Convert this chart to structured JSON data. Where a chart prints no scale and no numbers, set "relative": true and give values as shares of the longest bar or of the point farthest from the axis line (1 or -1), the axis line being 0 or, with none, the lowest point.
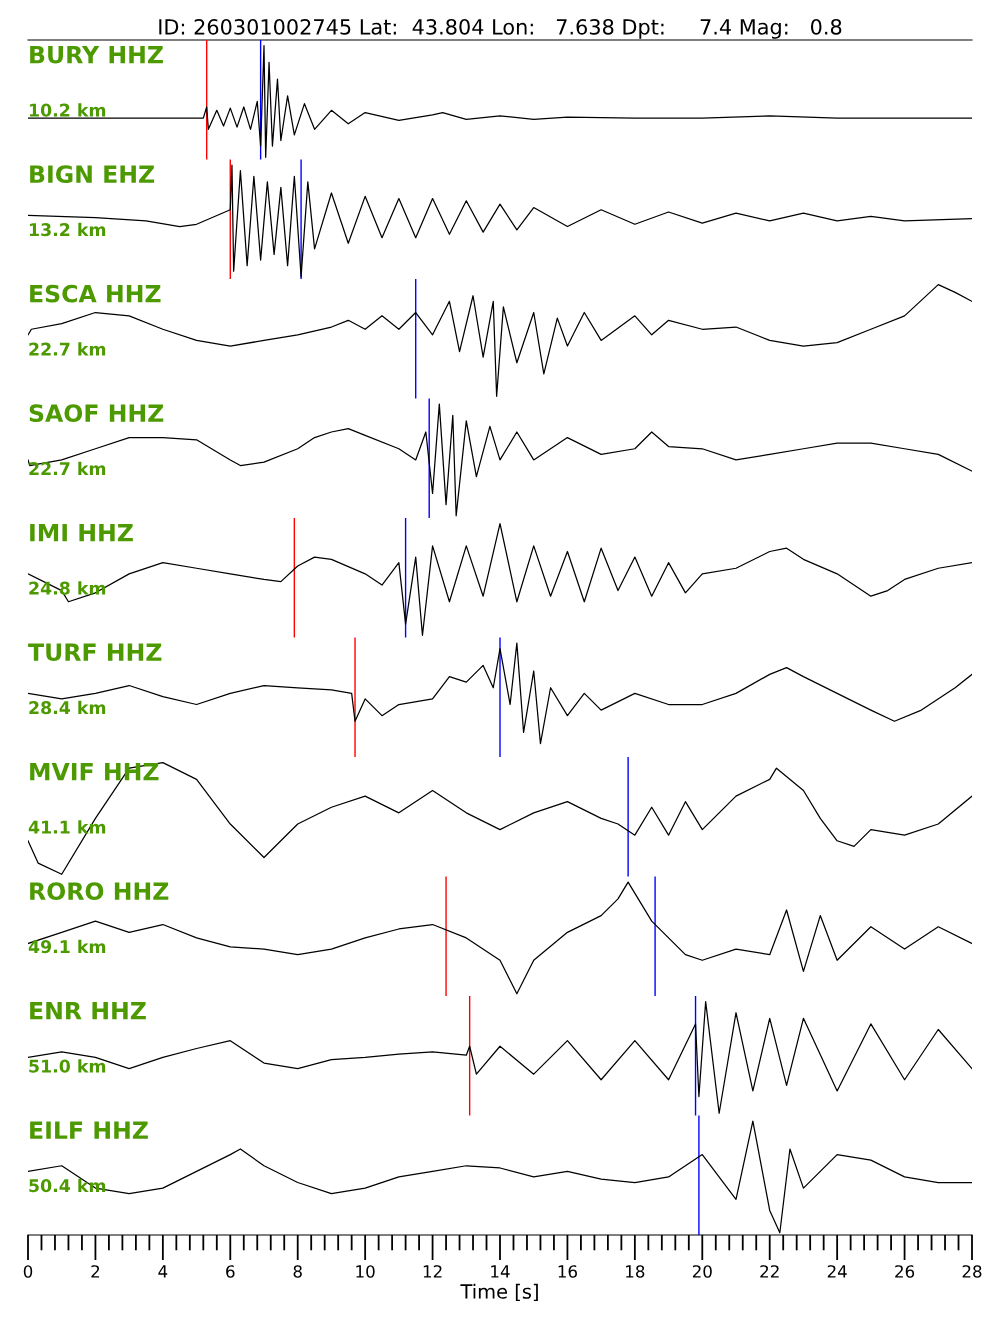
{
  "chart_data": [
    {
      "type": "line",
      "relative": true,
      "title": "ID: 260301002745 Lat:  43.804 Lon:   7.638 Dpt:     7.4 Mag:   0.8",
      "annotations": [
        "BURY HHZ",
        "10.2 km"
      ],
      "xlim": [
        0,
        28
      ],
      "tick_labels": false,
      "series": [
        {
          "color": "#000000",
          "x": [
            0,
            5.2,
            5.3,
            5.35,
            5.6,
            5.8,
            6.0,
            6.2,
            6.4,
            6.6,
            6.8,
            6.9,
            7.0,
            7.05,
            7.15,
            7.25,
            7.4,
            7.5,
            7.7,
            7.9,
            8.2,
            8.5,
            9,
            9.5,
            10,
            11,
            12,
            12.3,
            13,
            14,
            15,
            16,
            18,
            20,
            22,
            24,
            26,
            28
          ],
          "values": [
            0.35,
            0.35,
            0.45,
            0.25,
            0.42,
            0.28,
            0.44,
            0.27,
            0.45,
            0.25,
            0.5,
            0.1,
            1.0,
            0.0,
            0.85,
            0.1,
            0.7,
            0.15,
            0.55,
            0.2,
            0.48,
            0.25,
            0.42,
            0.3,
            0.4,
            0.33,
            0.38,
            0.4,
            0.34,
            0.37,
            0.34,
            0.36,
            0.35,
            0.35,
            0.37,
            0.35,
            0.35,
            0.35
          ]
        }
      ],
      "ref_lines": [
        {
          "axis": "x",
          "value": 5.3,
          "color": "#ff0000"
        },
        {
          "axis": "x",
          "value": 6.9,
          "color": "#0000ff"
        }
      ]
    },
    {
      "type": "line",
      "relative": true,
      "annotations": [
        "BIGN EHZ",
        "13.2 km"
      ],
      "xlim": [
        0,
        28
      ],
      "tick_labels": false,
      "series": [
        {
          "color": "#000000",
          "x": [
            0,
            2,
            3.5,
            4.5,
            5,
            6.0,
            6.05,
            6.1,
            6.3,
            6.5,
            6.7,
            6.9,
            7.1,
            7.3,
            7.5,
            7.7,
            7.9,
            8.1,
            8.3,
            8.5,
            9,
            9.5,
            10,
            10.5,
            11,
            11.5,
            12,
            12.5,
            13,
            13.5,
            14,
            14.5,
            15,
            16,
            17,
            18,
            19,
            20,
            21,
            22,
            23,
            24,
            25,
            26,
            28
          ],
          "values": [
            0.55,
            0.53,
            0.5,
            0.45,
            0.47,
            0.6,
            1.0,
            0.05,
            0.95,
            0.1,
            0.9,
            0.15,
            0.85,
            0.2,
            0.8,
            0.1,
            0.9,
            0.0,
            0.85,
            0.25,
            0.75,
            0.3,
            0.72,
            0.35,
            0.7,
            0.35,
            0.7,
            0.38,
            0.68,
            0.4,
            0.65,
            0.42,
            0.62,
            0.45,
            0.6,
            0.47,
            0.58,
            0.48,
            0.57,
            0.5,
            0.57,
            0.5,
            0.54,
            0.5,
            0.52
          ]
        }
      ],
      "ref_lines": [
        {
          "axis": "x",
          "value": 6.0,
          "color": "#ff0000"
        },
        {
          "axis": "x",
          "value": 8.1,
          "color": "#0000ff"
        }
      ]
    },
    {
      "type": "line",
      "relative": true,
      "annotations": [
        "ESCA HHZ",
        "22.7 km"
      ],
      "xlim": [
        0,
        28
      ],
      "tick_labels": false,
      "series": [
        {
          "color": "#000000",
          "x": [
            0,
            0.1,
            1,
            2,
            3,
            4,
            5,
            6,
            7,
            8,
            9,
            9.5,
            10,
            10.5,
            11,
            11.5,
            12,
            12.5,
            12.8,
            13.2,
            13.5,
            13.8,
            13.9,
            14.1,
            14.5,
            15,
            15.3,
            15.7,
            16,
            16.5,
            17,
            18,
            18.5,
            19,
            20,
            21,
            22,
            23,
            24,
            25,
            26,
            27,
            27.5,
            28
          ],
          "values": [
            0.55,
            0.6,
            0.65,
            0.75,
            0.72,
            0.6,
            0.5,
            0.45,
            0.5,
            0.55,
            0.62,
            0.68,
            0.6,
            0.72,
            0.6,
            0.75,
            0.55,
            0.85,
            0.4,
            0.9,
            0.35,
            0.85,
            0.0,
            0.8,
            0.3,
            0.75,
            0.2,
            0.7,
            0.45,
            0.75,
            0.5,
            0.72,
            0.55,
            0.68,
            0.6,
            0.62,
            0.5,
            0.45,
            0.48,
            0.6,
            0.72,
            1.0,
            0.93,
            0.85
          ]
        }
      ],
      "ref_lines": [
        {
          "axis": "x",
          "value": 11.5,
          "color": "#0000ff"
        }
      ]
    },
    {
      "type": "line",
      "relative": true,
      "annotations": [
        "SAOF HHZ",
        "22.7 km"
      ],
      "xlim": [
        0,
        28
      ],
      "tick_labels": false,
      "series": [
        {
          "color": "#000000",
          "x": [
            0,
            0.05,
            1,
            2,
            3,
            4,
            5,
            6,
            6.3,
            7,
            8,
            8.5,
            9,
            9.5,
            10,
            11,
            11.5,
            11.8,
            12,
            12.2,
            12.4,
            12.6,
            12.7,
            13,
            13.3,
            13.7,
            14,
            14.5,
            15,
            16,
            17,
            18,
            18.5,
            19,
            20,
            21,
            22,
            23,
            24,
            25,
            26,
            27,
            28
          ],
          "values": [
            0.5,
            0.45,
            0.5,
            0.6,
            0.7,
            0.7,
            0.68,
            0.5,
            0.45,
            0.48,
            0.6,
            0.7,
            0.75,
            0.78,
            0.72,
            0.6,
            0.5,
            0.75,
            0.2,
            1.0,
            0.1,
            0.9,
            0.0,
            0.85,
            0.35,
            0.8,
            0.5,
            0.75,
            0.5,
            0.7,
            0.55,
            0.6,
            0.75,
            0.62,
            0.6,
            0.5,
            0.55,
            0.6,
            0.65,
            0.65,
            0.6,
            0.55,
            0.4
          ]
        }
      ],
      "ref_lines": [
        {
          "axis": "x",
          "value": 11.9,
          "color": "#0000ff"
        }
      ]
    },
    {
      "type": "line",
      "relative": true,
      "annotations": [
        "IMI HHZ",
        "24.8 km"
      ],
      "xlim": [
        0,
        28
      ],
      "tick_labels": false,
      "series": [
        {
          "color": "#000000",
          "x": [
            0,
            1,
            1.2,
            2,
            3,
            4,
            5,
            6,
            7,
            7.5,
            8,
            8.5,
            9,
            10,
            10.5,
            11,
            11.2,
            11.5,
            11.7,
            12,
            12.5,
            13,
            13.5,
            14,
            14.5,
            15,
            15.5,
            16,
            16.5,
            17,
            17.5,
            18,
            18.5,
            19,
            19.5,
            20,
            21,
            22,
            22.5,
            23,
            24,
            25,
            25.5,
            26,
            27,
            28
          ],
          "values": [
            0.55,
            0.4,
            0.3,
            0.38,
            0.55,
            0.65,
            0.6,
            0.55,
            0.5,
            0.48,
            0.62,
            0.7,
            0.68,
            0.55,
            0.45,
            0.65,
            0.1,
            0.7,
            0.0,
            0.8,
            0.3,
            0.8,
            0.35,
            1.0,
            0.3,
            0.8,
            0.35,
            0.75,
            0.3,
            0.78,
            0.4,
            0.7,
            0.35,
            0.65,
            0.38,
            0.55,
            0.6,
            0.75,
            0.78,
            0.68,
            0.55,
            0.35,
            0.4,
            0.5,
            0.6,
            0.65
          ]
        }
      ],
      "ref_lines": [
        {
          "axis": "x",
          "value": 7.9,
          "color": "#ff0000"
        },
        {
          "axis": "x",
          "value": 11.2,
          "color": "#0000ff"
        }
      ]
    },
    {
      "type": "line",
      "relative": true,
      "annotations": [
        "TURF HHZ",
        "28.4 km"
      ],
      "xlim": [
        0,
        28
      ],
      "tick_labels": false,
      "series": [
        {
          "color": "#000000",
          "x": [
            0,
            1,
            2,
            3,
            4,
            5,
            6,
            7,
            8,
            9,
            9.6,
            9.7,
            10,
            10.5,
            11,
            12,
            12.5,
            13,
            13.5,
            13.8,
            14,
            14.3,
            14.5,
            14.7,
            15,
            15.2,
            15.5,
            16,
            16.5,
            17,
            18,
            19,
            20,
            21,
            22,
            22.5,
            23,
            24,
            25,
            25.7,
            26.5,
            27.5,
            28
          ],
          "values": [
            0.55,
            0.5,
            0.55,
            0.62,
            0.52,
            0.45,
            0.55,
            0.62,
            0.6,
            0.58,
            0.55,
            0.3,
            0.5,
            0.35,
            0.45,
            0.5,
            0.7,
            0.65,
            0.8,
            0.6,
            0.95,
            0.45,
            1.0,
            0.2,
            0.75,
            0.1,
            0.6,
            0.35,
            0.55,
            0.4,
            0.55,
            0.45,
            0.45,
            0.55,
            0.72,
            0.78,
            0.7,
            0.55,
            0.4,
            0.3,
            0.4,
            0.6,
            0.72
          ]
        }
      ],
      "ref_lines": [
        {
          "axis": "x",
          "value": 9.7,
          "color": "#ff0000"
        },
        {
          "axis": "x",
          "value": 14.0,
          "color": "#0000ff"
        }
      ]
    },
    {
      "type": "line",
      "relative": true,
      "annotations": [
        "MVIF HHZ",
        "41.1 km"
      ],
      "xlim": [
        0,
        28
      ],
      "tick_labels": false,
      "series": [
        {
          "color": "#000000",
          "x": [
            0,
            0.3,
            1,
            2,
            3,
            4,
            5,
            6,
            7,
            8,
            9,
            10,
            11,
            12,
            13,
            14,
            15,
            16,
            17,
            17.5,
            18,
            18.5,
            19,
            19.5,
            20,
            21,
            22,
            22.2,
            23,
            23.5,
            24,
            24.5,
            25,
            26,
            27,
            28
          ],
          "values": [
            0.3,
            0.1,
            0.0,
            0.5,
            0.95,
            1.0,
            0.85,
            0.45,
            0.15,
            0.45,
            0.6,
            0.7,
            0.55,
            0.75,
            0.55,
            0.4,
            0.55,
            0.65,
            0.5,
            0.45,
            0.35,
            0.6,
            0.35,
            0.65,
            0.4,
            0.7,
            0.85,
            0.95,
            0.75,
            0.5,
            0.3,
            0.25,
            0.4,
            0.35,
            0.45,
            0.7
          ]
        }
      ],
      "ref_lines": [
        {
          "axis": "x",
          "value": 17.8,
          "color": "#0000ff"
        }
      ]
    },
    {
      "type": "line",
      "relative": true,
      "annotations": [
        "RORO HHZ",
        "49.1 km"
      ],
      "xlim": [
        0,
        28
      ],
      "tick_labels": false,
      "series": [
        {
          "color": "#000000",
          "x": [
            0,
            1,
            2,
            3,
            4,
            5,
            6,
            7,
            8,
            9,
            10,
            11,
            12,
            13,
            14,
            14.5,
            15,
            16,
            17,
            17.5,
            17.8,
            18.5,
            19,
            19.5,
            20,
            21,
            22,
            22.5,
            23,
            23.5,
            24,
            25,
            26,
            27,
            28
          ],
          "values": [
            0.45,
            0.55,
            0.65,
            0.55,
            0.62,
            0.5,
            0.42,
            0.4,
            0.35,
            0.4,
            0.5,
            0.58,
            0.62,
            0.5,
            0.3,
            0.0,
            0.3,
            0.55,
            0.7,
            0.85,
            1.0,
            0.65,
            0.5,
            0.35,
            0.3,
            0.4,
            0.35,
            0.75,
            0.2,
            0.7,
            0.3,
            0.6,
            0.4,
            0.6,
            0.45
          ]
        }
      ],
      "ref_lines": [
        {
          "axis": "x",
          "value": 12.4,
          "color": "#ff0000"
        },
        {
          "axis": "x",
          "value": 18.6,
          "color": "#0000ff"
        }
      ]
    },
    {
      "type": "line",
      "relative": true,
      "annotations": [
        "ENR HHZ",
        "51.0 km"
      ],
      "xlim": [
        0,
        28
      ],
      "tick_labels": false,
      "series": [
        {
          "color": "#000000",
          "x": [
            0,
            1,
            2,
            3,
            4,
            5,
            6,
            7,
            8,
            9,
            10,
            11,
            12,
            13,
            13.1,
            13.3,
            14,
            15,
            16,
            17,
            18,
            19,
            19.8,
            19.9,
            20.1,
            20.5,
            21,
            21.5,
            22,
            22.5,
            23,
            24,
            25,
            26,
            27,
            28
          ],
          "values": [
            0.5,
            0.55,
            0.5,
            0.4,
            0.5,
            0.58,
            0.65,
            0.45,
            0.4,
            0.48,
            0.5,
            0.53,
            0.55,
            0.52,
            0.6,
            0.35,
            0.6,
            0.35,
            0.65,
            0.3,
            0.65,
            0.3,
            0.8,
            0.15,
            1.0,
            0.0,
            0.9,
            0.2,
            0.85,
            0.25,
            0.85,
            0.2,
            0.8,
            0.3,
            0.75,
            0.4
          ]
        }
      ],
      "ref_lines": [
        {
          "axis": "x",
          "value": 13.1,
          "color": "#ff0000"
        },
        {
          "axis": "x",
          "value": 19.8,
          "color": "#0000ff"
        }
      ]
    },
    {
      "type": "line",
      "relative": true,
      "annotations": [
        "EILF HHZ",
        "50.4 km"
      ],
      "xlabel": "Time [s]",
      "xlim": [
        0,
        28
      ],
      "xticks": [
        0,
        2,
        4,
        6,
        8,
        10,
        12,
        14,
        16,
        18,
        20,
        22,
        24,
        26,
        28
      ],
      "tick_labels": "x",
      "series": [
        {
          "color": "#000000",
          "x": [
            0,
            1,
            2,
            3,
            4,
            5,
            6,
            6.3,
            7,
            8,
            9,
            10,
            11,
            12,
            13,
            14,
            15,
            16,
            17,
            18,
            19,
            20,
            21,
            21.5,
            22,
            22.3,
            22.6,
            23,
            24,
            25,
            26,
            27,
            28
          ],
          "values": [
            0.55,
            0.6,
            0.4,
            0.35,
            0.4,
            0.55,
            0.7,
            0.75,
            0.6,
            0.45,
            0.35,
            0.4,
            0.5,
            0.55,
            0.6,
            0.58,
            0.5,
            0.55,
            0.48,
            0.45,
            0.5,
            0.7,
            0.3,
            1.0,
            0.2,
            0.0,
            0.75,
            0.4,
            0.7,
            0.65,
            0.5,
            0.45,
            0.45
          ]
        }
      ],
      "ref_lines": [
        {
          "axis": "x",
          "value": 19.9,
          "color": "#0000ff"
        }
      ]
    }
  ]
}
